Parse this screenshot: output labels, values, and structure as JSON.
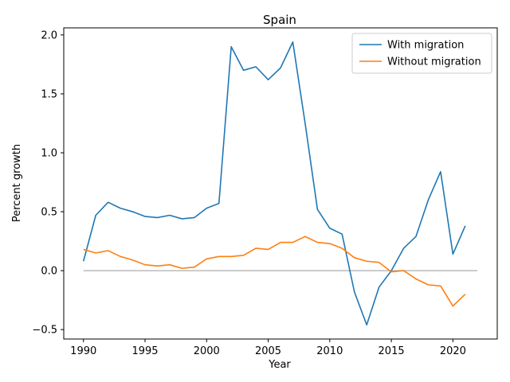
{
  "chart_data": {
    "type": "line",
    "title": "Spain",
    "xlabel": "Year",
    "ylabel": "Percent growth",
    "xlim": [
      1988.4,
      2023.6
    ],
    "ylim": [
      -0.58,
      2.06
    ],
    "xticks": [
      1990,
      1995,
      2000,
      2005,
      2010,
      2015,
      2020
    ],
    "xtick_labels": [
      "1990",
      "1995",
      "2000",
      "2005",
      "2010",
      "2015",
      "2020"
    ],
    "yticks": [
      -0.5,
      0.0,
      0.5,
      1.0,
      1.5,
      2.0
    ],
    "ytick_labels": [
      "−0.5",
      "0.0",
      "0.5",
      "1.0",
      "1.5",
      "2.0"
    ],
    "grid": false,
    "legend_position": "top-right",
    "reference_line": {
      "y": 0,
      "x_from": 1990,
      "x_to": 2022,
      "color": "#bbbbbb"
    },
    "x": [
      1990,
      1991,
      1992,
      1993,
      1994,
      1995,
      1996,
      1997,
      1998,
      1999,
      2000,
      2001,
      2002,
      2003,
      2004,
      2005,
      2006,
      2007,
      2008,
      2009,
      2010,
      2011,
      2012,
      2013,
      2014,
      2015,
      2016,
      2017,
      2018,
      2019,
      2020,
      2021
    ],
    "series": [
      {
        "name": "With migration",
        "color": "#1f77b4",
        "values": [
          0.08,
          0.47,
          0.58,
          0.53,
          0.5,
          0.46,
          0.45,
          0.47,
          0.44,
          0.45,
          0.53,
          0.57,
          1.9,
          1.7,
          1.73,
          1.62,
          1.72,
          1.94,
          1.25,
          0.52,
          0.36,
          0.31,
          -0.18,
          -0.46,
          -0.14,
          0.0,
          0.19,
          0.29,
          0.6,
          0.84,
          0.14,
          0.38
        ]
      },
      {
        "name": "Without migration",
        "color": "#ff7f0e",
        "values": [
          0.18,
          0.15,
          0.17,
          0.12,
          0.09,
          0.05,
          0.04,
          0.05,
          0.02,
          0.03,
          0.1,
          0.12,
          0.12,
          0.13,
          0.19,
          0.18,
          0.24,
          0.24,
          0.29,
          0.24,
          0.23,
          0.19,
          0.11,
          0.08,
          0.07,
          -0.01,
          0.0,
          -0.07,
          -0.12,
          -0.13,
          -0.3,
          -0.2
        ]
      }
    ]
  }
}
